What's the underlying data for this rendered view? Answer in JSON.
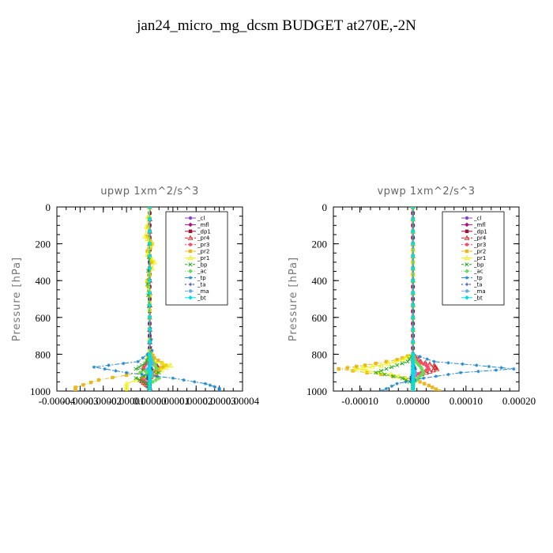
{
  "figure_title": "jan24_micro_mg_dcsm  BUDGET at270E,-2N",
  "legend_entries": [
    "_cl",
    "_mfl",
    "_dp1",
    "_pr4",
    "_pr3",
    "_pr2",
    "_pr1",
    "_bp",
    "_ac",
    "_tp",
    "_ta",
    "_ma",
    "_bt"
  ],
  "series_colors": {
    "_cl": "#8844cc",
    "_mfl": "#b0107a",
    "_dp1": "#a01030",
    "_pr4": "#d81818",
    "_pr3": "#ff4a6a",
    "_pr2": "#e8b820",
    "_pr1": "#f0f000",
    "_bp": "#22aa22",
    "_ac": "#66dd55",
    "_tp": "#2288cc",
    "_ta": "#223399",
    "_ma": "#66aaee",
    "_bt": "#00e0e0"
  },
  "chart_data": [
    {
      "type": "line",
      "title": "upwp   1xm^2/s^3",
      "ylabel": "Pressure [hPa]",
      "xlabel": "",
      "ylim": [
        1000,
        0
      ],
      "xlim": [
        -4e-05,
        4e-05
      ],
      "yticks": [
        0,
        200,
        400,
        600,
        800,
        1000
      ],
      "xticks": [
        "-0.00004",
        "-0.00003",
        "-0.00002",
        "-0.00001",
        "0.00000",
        "0.00001",
        "0.00002",
        "0.00003",
        "0.00004"
      ],
      "grid": false,
      "legend_position": "top-right",
      "series": [
        {
          "name": "_cl",
          "y": [
            0,
            100,
            200,
            300,
            400,
            500,
            600,
            700,
            800,
            850,
            875,
            900,
            925,
            950,
            975,
            1000
          ],
          "x": [
            0,
            0,
            0,
            0,
            0,
            0,
            0,
            0,
            0,
            0,
            0,
            0,
            0,
            0,
            0,
            0
          ]
        },
        {
          "name": "_mfl",
          "y": [
            0,
            100,
            200,
            300,
            400,
            500,
            600,
            700,
            800,
            850,
            875,
            900,
            925,
            950,
            975,
            1000
          ],
          "x": [
            0,
            0,
            0,
            0,
            0,
            0,
            0,
            0,
            0,
            0,
            0,
            0,
            0,
            0,
            0,
            0
          ]
        },
        {
          "name": "_dp1",
          "y": [
            0,
            100,
            200,
            300,
            400,
            500,
            600,
            700,
            800,
            850,
            875,
            900,
            925,
            950,
            975,
            1000
          ],
          "x": [
            0,
            0,
            0,
            0,
            0,
            0,
            0,
            0,
            0,
            0,
            0,
            0,
            0,
            0,
            0,
            0
          ]
        },
        {
          "name": "_pr4",
          "y": [
            0,
            200,
            400,
            600,
            800,
            840,
            860,
            880,
            900,
            920,
            940,
            960,
            980,
            1000
          ],
          "x": [
            0,
            0,
            0,
            0,
            0,
            1e-06,
            3e-06,
            4e-06,
            2e-06,
            -2e-06,
            -4e-06,
            -2e-06,
            0,
            0
          ]
        },
        {
          "name": "_pr3",
          "y": [
            0,
            200,
            400,
            600,
            800,
            840,
            860,
            880,
            900,
            920,
            940,
            960,
            980,
            1000
          ],
          "x": [
            0,
            0,
            0,
            0,
            0,
            -1e-06,
            -2e-06,
            -3e-06,
            2e-06,
            3e-06,
            -3e-06,
            -1e-06,
            0,
            0
          ]
        },
        {
          "name": "_pr2",
          "y": [
            0,
            160,
            200,
            240,
            300,
            400,
            480,
            600,
            780,
            820,
            860,
            880,
            900,
            940,
            980,
            1000
          ],
          "x": [
            0,
            -1e-06,
            1e-06,
            -1e-06,
            1e-06,
            -1e-06,
            0,
            0,
            0,
            2e-06,
            7e-06,
            4e-06,
            -4e-06,
            -2.2e-05,
            -3.2e-05,
            -3.2e-05
          ]
        },
        {
          "name": "_pr1",
          "y": [
            0,
            160,
            200,
            260,
            300,
            400,
            480,
            600,
            780,
            830,
            860,
            900,
            960,
            1000
          ],
          "x": [
            0,
            -2e-06,
            1e-06,
            -1e-06,
            2e-06,
            -1e-06,
            0,
            0,
            0,
            -1e-06,
            9e-06,
            3e-06,
            -1e-05,
            -1e-05
          ]
        },
        {
          "name": "_bp",
          "y": [
            0,
            200,
            420,
            600,
            800,
            850,
            880,
            900,
            930,
            960,
            1000
          ],
          "x": [
            0,
            0,
            -1e-06,
            0,
            0,
            -2e-06,
            -6e-06,
            4e-06,
            -6e-06,
            -1e-06,
            0
          ]
        },
        {
          "name": "_ac",
          "y": [
            0,
            200,
            400,
            600,
            800,
            850,
            880,
            900,
            930,
            960,
            1000
          ],
          "x": [
            0,
            0,
            0,
            0,
            0,
            2e-06,
            3e-06,
            -4e-06,
            4e-06,
            0,
            0
          ]
        },
        {
          "name": "_tp",
          "y": [
            0,
            200,
            400,
            600,
            780,
            840,
            870,
            900,
            930,
            960,
            985,
            1000
          ],
          "x": [
            0,
            0,
            0,
            0,
            1e-06,
            -5e-06,
            -2.4e-05,
            -1e-05,
            1e-05,
            2.4e-05,
            3e-05,
            3e-05
          ]
        },
        {
          "name": "_ta",
          "y": [
            0,
            200,
            400,
            600,
            800,
            850,
            880,
            900,
            930,
            960,
            1000
          ],
          "x": [
            0,
            0,
            0,
            0,
            0,
            0,
            1e-06,
            0,
            -1e-06,
            0,
            0
          ]
        },
        {
          "name": "_ma",
          "y": [
            0,
            200,
            400,
            600,
            800,
            850,
            880,
            900,
            930,
            960,
            1000
          ],
          "x": [
            0,
            0,
            0,
            0,
            0,
            1e-06,
            -1e-06,
            1e-06,
            0,
            0,
            0
          ]
        },
        {
          "name": "_bt",
          "y": [
            0,
            200,
            400,
            600,
            800,
            850,
            880,
            900,
            930,
            960,
            1000
          ],
          "x": [
            0,
            0,
            0,
            0,
            0,
            0,
            0,
            0,
            0,
            0,
            0
          ]
        }
      ]
    },
    {
      "type": "line",
      "title": "vpwp   1xm^2/s^3",
      "ylabel": "Pressure [hPa]",
      "xlabel": "",
      "ylim": [
        1000,
        0
      ],
      "xlim": [
        -0.00015,
        0.0002
      ],
      "yticks": [
        0,
        200,
        400,
        600,
        800,
        1000
      ],
      "xticks": [
        "-0.00010",
        "0.00000",
        "0.00010",
        "0.00020"
      ],
      "grid": false,
      "legend_position": "top-right",
      "series": [
        {
          "name": "_cl",
          "y": [
            0,
            100,
            200,
            300,
            400,
            500,
            600,
            700,
            800,
            850,
            900,
            950,
            1000
          ],
          "x": [
            0,
            0,
            0,
            0,
            0,
            0,
            0,
            0,
            0,
            0,
            0,
            0,
            0
          ]
        },
        {
          "name": "_mfl",
          "y": [
            0,
            100,
            200,
            300,
            400,
            500,
            600,
            700,
            800,
            850,
            900,
            950,
            1000
          ],
          "x": [
            0,
            0,
            0,
            0,
            0,
            0,
            0,
            0,
            0,
            0,
            0,
            0,
            0
          ]
        },
        {
          "name": "_dp1",
          "y": [
            0,
            100,
            200,
            300,
            400,
            500,
            600,
            700,
            800,
            850,
            900,
            950,
            1000
          ],
          "x": [
            0,
            0,
            0,
            0,
            0,
            0,
            0,
            0,
            0,
            0,
            0,
            0,
            0
          ]
        },
        {
          "name": "_pr4",
          "y": [
            0,
            200,
            400,
            600,
            800,
            840,
            860,
            880,
            900,
            920,
            940,
            1000
          ],
          "x": [
            0,
            0,
            0,
            0,
            0,
            1.5e-05,
            4e-05,
            4.5e-05,
            2.5e-05,
            0,
            0,
            0
          ]
        },
        {
          "name": "_pr3",
          "y": [
            0,
            200,
            400,
            600,
            800,
            840,
            860,
            880,
            900,
            920,
            940,
            1000
          ],
          "x": [
            0,
            0,
            0,
            0,
            0,
            1e-05,
            2.5e-05,
            3e-05,
            1.5e-05,
            0,
            0,
            0
          ]
        },
        {
          "name": "_pr2",
          "y": [
            0,
            200,
            300,
            400,
            600,
            800,
            830,
            860,
            880,
            910,
            940,
            970,
            1000
          ],
          "x": [
            0,
            0,
            0,
            0,
            0,
            0,
            -3e-05,
            -9e-05,
            -0.00014,
            -6e-05,
            5e-06,
            3e-05,
            5e-05
          ]
        },
        {
          "name": "_pr1",
          "y": [
            0,
            200,
            300,
            400,
            600,
            800,
            830,
            860,
            880,
            910,
            940,
            1000
          ],
          "x": [
            0,
            0,
            0,
            0,
            0,
            0,
            -2e-05,
            -6e-05,
            -0.00011,
            -4e-05,
            0,
            0
          ]
        },
        {
          "name": "_bp",
          "y": [
            0,
            200,
            400,
            600,
            800,
            840,
            870,
            900,
            930,
            960,
            1000
          ],
          "x": [
            0,
            0,
            0,
            0,
            0,
            -1e-05,
            -4e-05,
            -7e-05,
            -2e-05,
            0,
            0
          ]
        },
        {
          "name": "_ac",
          "y": [
            0,
            200,
            400,
            600,
            800,
            840,
            870,
            900,
            930,
            960,
            1000
          ],
          "x": [
            0,
            0,
            0,
            0,
            0,
            5e-06,
            1.5e-05,
            2e-05,
            1e-05,
            0,
            0
          ]
        },
        {
          "name": "_tp",
          "y": [
            0,
            200,
            400,
            600,
            800,
            840,
            860,
            880,
            900,
            930,
            960,
            1000
          ],
          "x": [
            0,
            0,
            0,
            0,
            0,
            4e-05,
            0.00012,
            0.00019,
            9e-05,
            2e-05,
            -3e-05,
            -6e-05
          ]
        },
        {
          "name": "_ta",
          "y": [
            0,
            200,
            400,
            600,
            800,
            850,
            880,
            900,
            930,
            960,
            1000
          ],
          "x": [
            0,
            0,
            0,
            0,
            0,
            0,
            5e-06,
            0,
            -5e-06,
            0,
            0
          ]
        },
        {
          "name": "_ma",
          "y": [
            0,
            200,
            400,
            600,
            800,
            850,
            880,
            900,
            930,
            960,
            1000
          ],
          "x": [
            0,
            0,
            0,
            0,
            0,
            0,
            0,
            5e-06,
            0,
            0,
            0
          ]
        },
        {
          "name": "_bt",
          "y": [
            0,
            200,
            400,
            600,
            800,
            850,
            880,
            900,
            930,
            960,
            1000
          ],
          "x": [
            0,
            0,
            0,
            0,
            0,
            0,
            0,
            0,
            0,
            0,
            0
          ]
        }
      ]
    }
  ]
}
